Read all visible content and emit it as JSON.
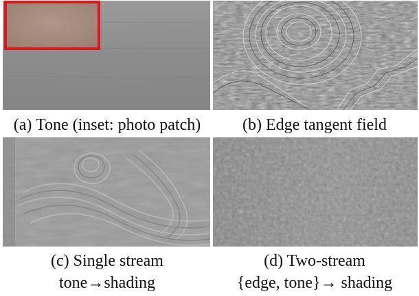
{
  "panels": [
    {
      "caption": "(a) Tone (inset: photo patch)"
    },
    {
      "caption": "(b) Edge tangent field"
    },
    {
      "caption_line1": "(c) Single stream",
      "caption_line2": "tone→shading"
    },
    {
      "caption_line1": "(d) Two-stream",
      "caption_line2": "{edge, tone}→ shading"
    }
  ],
  "colors": {
    "background": "#ffffff",
    "panel_gray": "#8e8e8e",
    "inset_skin": "#a58a7d",
    "inset_border": "#e0161a"
  }
}
